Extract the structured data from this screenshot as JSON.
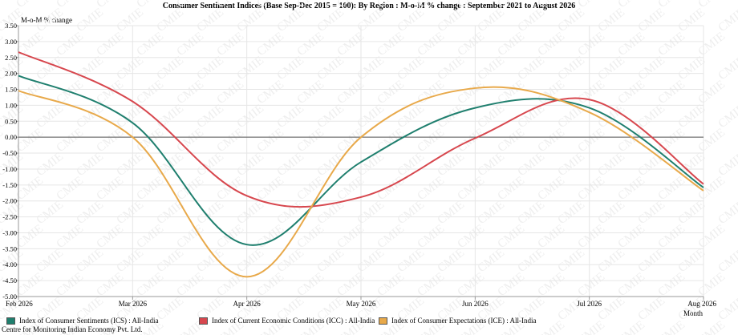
{
  "chart_data": {
    "type": "line",
    "title": "Consumer Sentiment Indices (Base Sep-Dec 2015 = 100): By Region : M-o-M % change : September 2021 to August 2026",
    "ylabel": "M-o-M % change",
    "xlabel": "Month",
    "categories": [
      "Feb 2026",
      "Mar 2026",
      "Apr 2026",
      "May 2026",
      "Jun 2026",
      "Jul 2026",
      "Aug 2026"
    ],
    "ylim": [
      -5.0,
      3.5
    ],
    "yticks": [
      "3.50",
      "3.00",
      "2.50",
      "2.00",
      "1.50",
      "1.00",
      "0.50",
      "0.00",
      "-0.50",
      "-1.00",
      "-1.50",
      "-2.00",
      "-2.50",
      "-3.00",
      "-3.50",
      "-4.00",
      "-4.50",
      "-5.00"
    ],
    "grid": true,
    "legend_position": "bottom",
    "watermark": "CMIE",
    "series": [
      {
        "name": "Index of Consumer Sentiments (ICS) : All-India",
        "color": "#1f7f6e",
        "values": [
          1.93,
          0.45,
          -3.37,
          -0.78,
          0.92,
          0.92,
          -1.58
        ]
      },
      {
        "name": "Index of Current Economic Conditions (ICC) : All-India",
        "color": "#d7474e",
        "values": [
          2.67,
          1.12,
          -1.84,
          -1.88,
          -0.03,
          1.18,
          -1.47
        ]
      },
      {
        "name": "Index of Consumer Expectations (ICE) : All-India",
        "color": "#e8a94a",
        "values": [
          1.46,
          0.0,
          -4.38,
          0.0,
          1.54,
          0.78,
          -1.68
        ]
      }
    ]
  },
  "footer": "Centre for Monitoring Indian Economy Pvt. Ltd."
}
